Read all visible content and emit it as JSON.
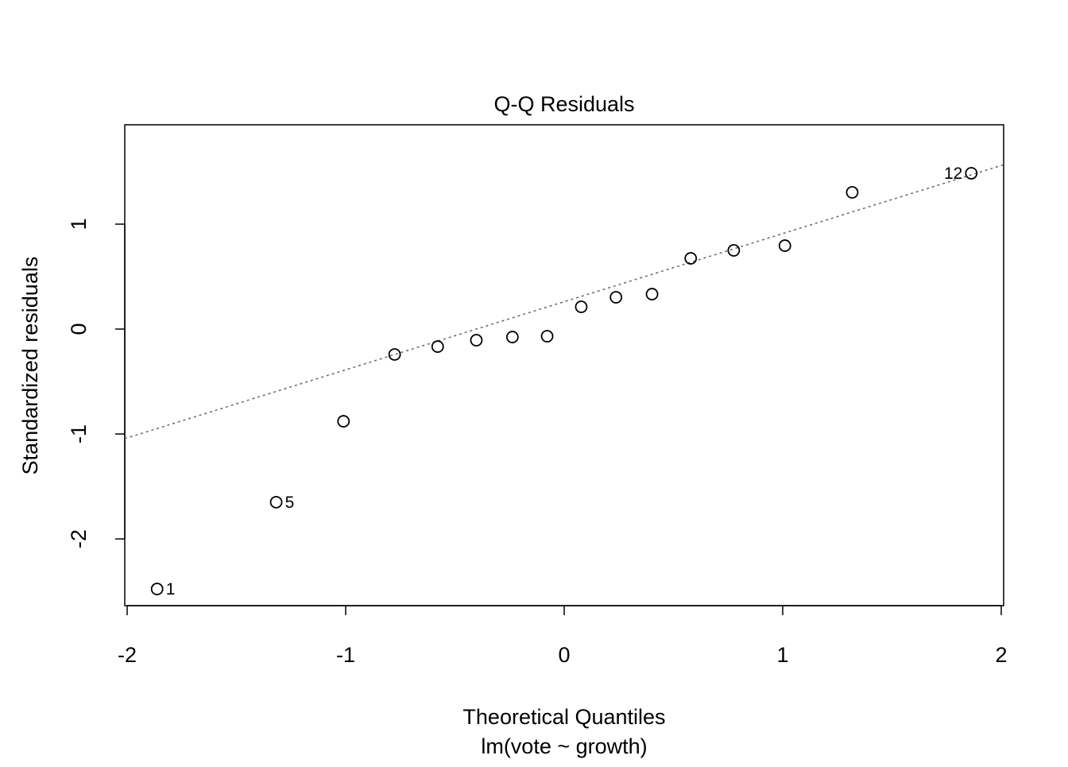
{
  "chart_data": {
    "type": "scatter",
    "title": "Q-Q Residuals",
    "xlabel": "Theoretical Quantiles",
    "subtitle": "lm(vote ~ growth)",
    "ylabel": "Standardized residuals",
    "xlim": [
      -2.011,
      2.011
    ],
    "ylim": [
      -2.636,
      1.947
    ],
    "xticks": [
      "-2",
      "-1",
      "0",
      "1",
      "2"
    ],
    "xtick_values": [
      -2,
      -1,
      0,
      1,
      2
    ],
    "yticks": [
      "-2",
      "-1",
      "0",
      "1"
    ],
    "ytick_values": [
      -2,
      -1,
      0,
      1
    ],
    "grid": false,
    "points": [
      {
        "x": -1.863,
        "y": -2.477,
        "label": "1"
      },
      {
        "x": -1.318,
        "y": -1.65,
        "label": "5"
      },
      {
        "x": -1.01,
        "y": -0.879
      },
      {
        "x": -0.776,
        "y": -0.242
      },
      {
        "x": -0.579,
        "y": -0.167
      },
      {
        "x": -0.402,
        "y": -0.106
      },
      {
        "x": -0.237,
        "y": -0.076
      },
      {
        "x": -0.078,
        "y": -0.068
      },
      {
        "x": 0.078,
        "y": 0.212
      },
      {
        "x": 0.237,
        "y": 0.303
      },
      {
        "x": 0.402,
        "y": 0.333
      },
      {
        "x": 0.579,
        "y": 0.674
      },
      {
        "x": 0.776,
        "y": 0.75
      },
      {
        "x": 1.01,
        "y": 0.795
      },
      {
        "x": 1.318,
        "y": 1.303
      },
      {
        "x": 1.863,
        "y": 1.485,
        "label": "12"
      }
    ],
    "reference_line": {
      "intercept": 0.261,
      "slope": 0.649,
      "style": "dotted",
      "color": "#666666"
    }
  }
}
